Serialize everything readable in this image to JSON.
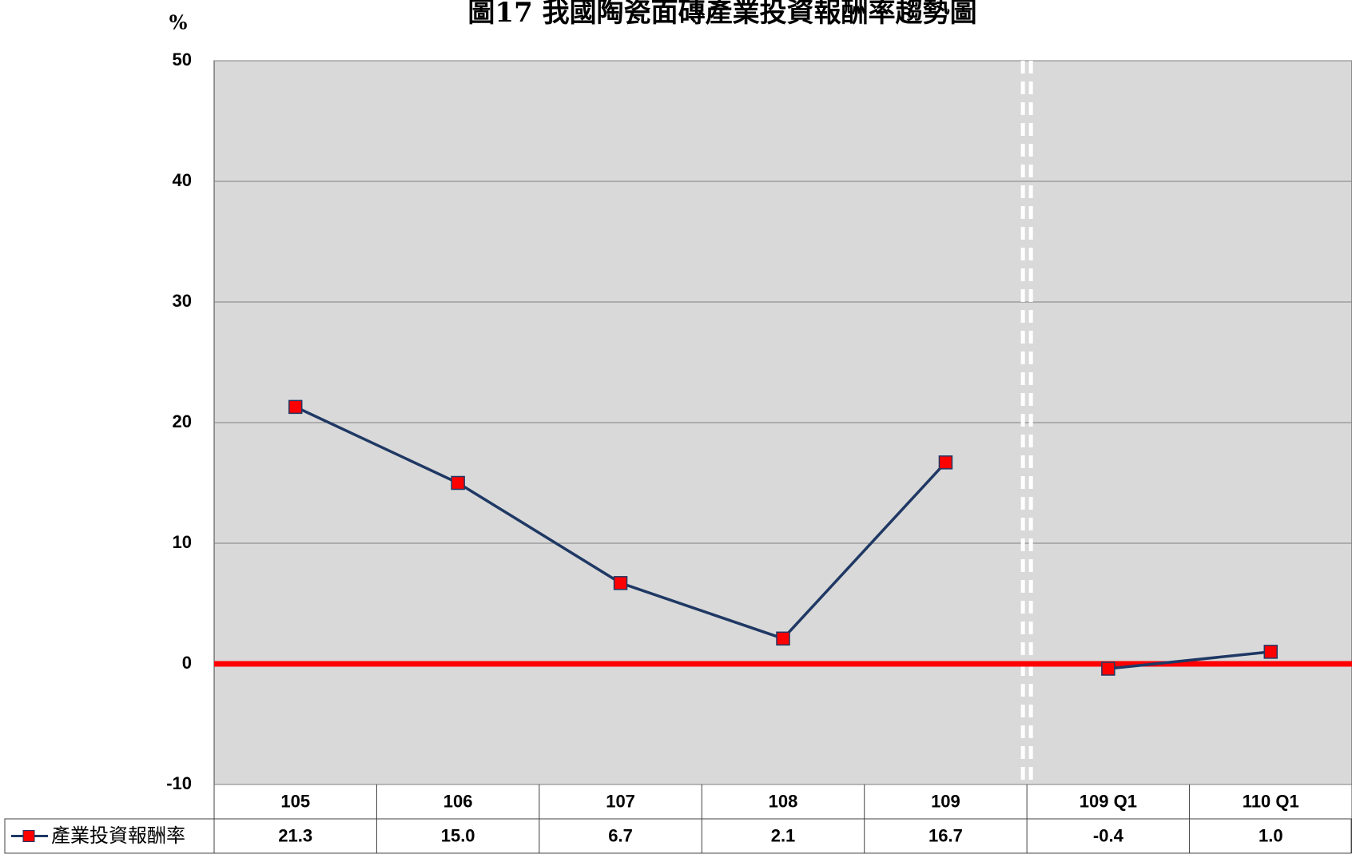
{
  "chart_data": {
    "type": "line",
    "title": "圖17 我國陶瓷面磚產業投資報酬率趨勢圖",
    "y_label": "%",
    "categories": [
      "105",
      "106",
      "107",
      "108",
      "109",
      "109 Q1",
      "110 Q1"
    ],
    "series": [
      {
        "name": "產業投資報酬率",
        "color": "#1f3864",
        "marker_color": "#ff0000",
        "values": [
          21.3,
          15.0,
          6.7,
          2.1,
          16.7,
          -0.4,
          1.0
        ],
        "value_labels": [
          "21.3",
          "15.0",
          "6.7",
          "2.1",
          "16.7",
          "-0.4",
          "1.0"
        ]
      }
    ],
    "ylim": [
      -10,
      50
    ],
    "yticks": [
      -10,
      0,
      10,
      20,
      30,
      40,
      50
    ],
    "grid": true,
    "zero_line_color": "#ff0000"
  }
}
